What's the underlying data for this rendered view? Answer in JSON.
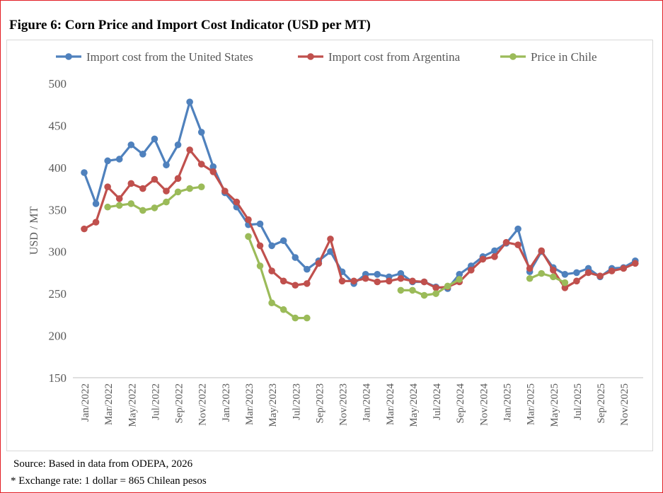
{
  "title": "Figure 6: Corn Price and Import Cost Indicator (USD per MT)",
  "source": "Source: Based in data from ODEPA, 2026",
  "note": "* Exchange rate: 1 dollar = 865 Chilean pesos",
  "chart_data": {
    "type": "line",
    "title": "Figure 6: Corn Price and Import Cost Indicator (USD per MT)",
    "ylabel": "USD / MT",
    "xlabel": "",
    "ylim": [
      150,
      500
    ],
    "yticks": [
      150,
      200,
      250,
      300,
      350,
      400,
      450,
      500
    ],
    "legend_position": "top",
    "x": [
      "Jan/2022",
      "Feb/2022",
      "Mar/2022",
      "Apr/2022",
      "May/2022",
      "Jun/2022",
      "Jul/2022",
      "Aug/2022",
      "Sep/2022",
      "Oct/2022",
      "Nov/2022",
      "Dec/2022",
      "Jan/2023",
      "Feb/2023",
      "Mar/2023",
      "Apr/2023",
      "May/2023",
      "Jun/2023",
      "Jul/2023",
      "Aug/2023",
      "Sep/2023",
      "Oct/2023",
      "Nov/2023",
      "Dec/2023",
      "Jan/2024",
      "Feb/2024",
      "Mar/2024",
      "Apr/2024",
      "May/2024",
      "Jun/2024",
      "Jul/2024",
      "Aug/2024",
      "Sep/2024",
      "Oct/2024",
      "Nov/2024",
      "Dec/2024",
      "Jan/2025",
      "Feb/2025",
      "Mar/2025",
      "Apr/2025",
      "May/2025",
      "Jun/2025",
      "Jul/2025",
      "Aug/2025",
      "Sep/2025",
      "Oct/2025",
      "Nov/2025",
      "Dec/2025"
    ],
    "series": [
      {
        "name": "Import cost from the United States",
        "color": "#4f81bd",
        "values": [
          394,
          357,
          408,
          410,
          427,
          416,
          434,
          403,
          427,
          478,
          442,
          401,
          370,
          353,
          332,
          333,
          307,
          313,
          293,
          279,
          289,
          300,
          276,
          262,
          273,
          273,
          270,
          274,
          264,
          264,
          258,
          256,
          273,
          283,
          294,
          301,
          310,
          327,
          276,
          300,
          281,
          273,
          275,
          280,
          270,
          280,
          281,
          289
        ]
      },
      {
        "name": "Import cost from Argentina",
        "color": "#c0504d",
        "values": [
          327,
          335,
          377,
          363,
          381,
          375,
          386,
          372,
          387,
          421,
          404,
          395,
          372,
          359,
          338,
          307,
          277,
          265,
          260,
          262,
          286,
          315,
          265,
          265,
          268,
          264,
          265,
          268,
          265,
          264,
          257,
          258,
          264,
          278,
          291,
          294,
          311,
          308,
          280,
          301,
          278,
          257,
          265,
          275,
          271,
          277,
          280,
          286
        ]
      },
      {
        "name": "Price in Chile",
        "color": "#9bbb59",
        "values": [
          null,
          null,
          353,
          355,
          357,
          349,
          352,
          359,
          371,
          375,
          377,
          null,
          null,
          null,
          318,
          283,
          239,
          231,
          221,
          221,
          null,
          null,
          null,
          null,
          null,
          null,
          null,
          254,
          254,
          248,
          250,
          259,
          267,
          null,
          null,
          null,
          null,
          null,
          268,
          274,
          270,
          263,
          null,
          null,
          null,
          null,
          null,
          null
        ]
      }
    ]
  }
}
